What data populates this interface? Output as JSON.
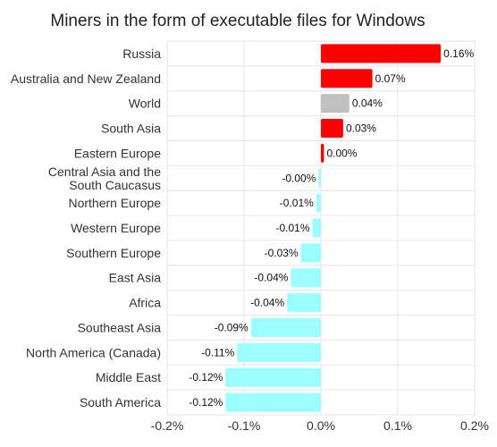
{
  "chart_data": {
    "type": "bar",
    "orientation": "horizontal",
    "title": "Miners in the form of executable files for Windows",
    "xlabel": "",
    "ylabel": "",
    "xlim": [
      -0.2,
      0.2
    ],
    "x_ticks": [
      -0.2,
      -0.1,
      0.0,
      0.1,
      0.2
    ],
    "x_tick_labels": [
      "-0.2%",
      "-0.1%",
      "0.0%",
      "0.1%",
      "0.2%"
    ],
    "grid": true,
    "legend": "none",
    "categories": [
      "Russia",
      "Australia and New Zealand",
      "World",
      "South Asia",
      "Eastern Europe",
      "Central Asia and the\nSouth Caucasus",
      "Northern Europe",
      "Western Europe",
      "Southern Europe",
      "East Asia",
      "Africa",
      "Southeast Asia",
      "North America (Canada)",
      "Middle East",
      "South America"
    ],
    "values": [
      0.156,
      0.067,
      0.037,
      0.029,
      0.004,
      -0.003,
      -0.006,
      -0.011,
      -0.026,
      -0.039,
      -0.044,
      -0.091,
      -0.109,
      -0.124,
      -0.124
    ],
    "data_labels": [
      "0.16%",
      "0.07%",
      "0.04%",
      "0.03%",
      "0.00%",
      "-0.00%",
      "-0.01%",
      "-0.01%",
      "-0.03%",
      "-0.04%",
      "-0.04%",
      "-0.09%",
      "-0.11%",
      "-0.12%",
      "-0.12%"
    ],
    "colors": {
      "positive": "#ff0000",
      "world": "#c0c0c0",
      "negative": "#99ffff",
      "grid": "#e6e6e6",
      "text": "#333333"
    },
    "highlight_category": "World"
  }
}
